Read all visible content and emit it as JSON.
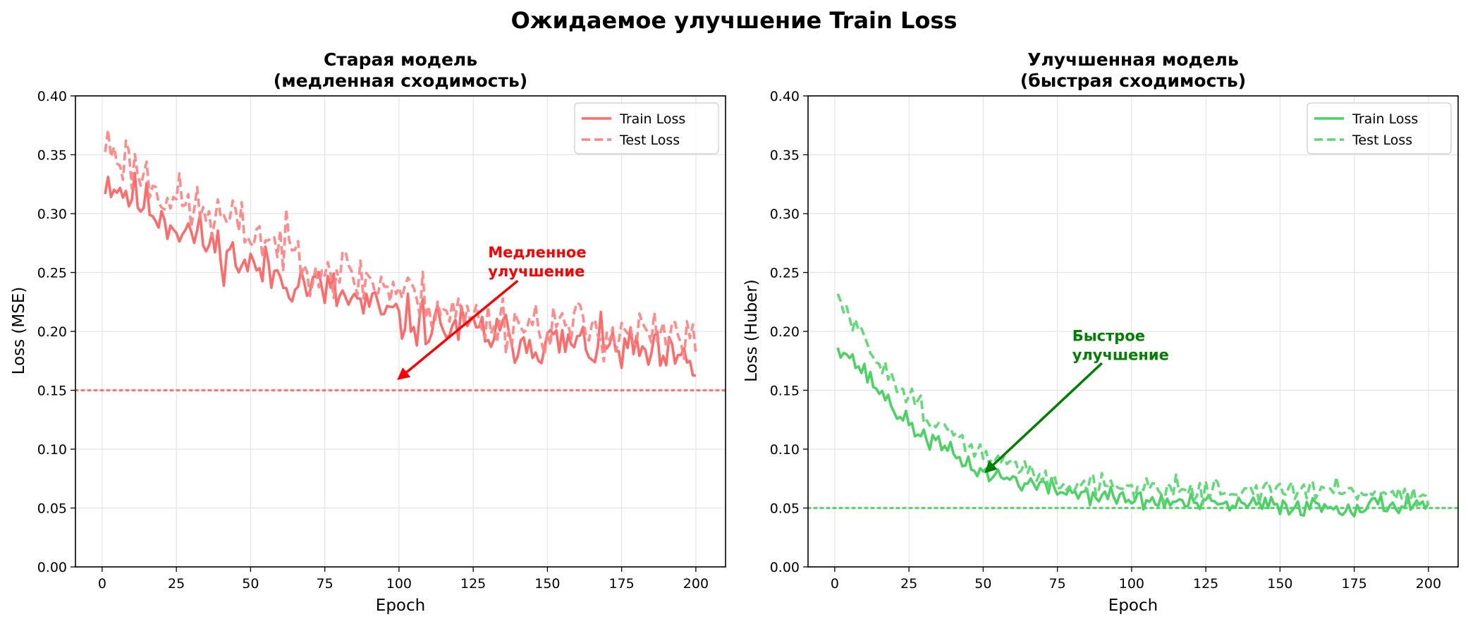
{
  "figure": {
    "title": "Ожидаемое улучшение Train Loss"
  },
  "colors": {
    "old": "#ff6b6b",
    "old_test": "#ff8585",
    "new": "#4cd164",
    "new_test": "#5ad872",
    "old_annotation": "#ff0000",
    "new_annotation": "#008000"
  },
  "chart_data": [
    {
      "type": "line",
      "title_line1": "Старая модель",
      "title_line2": "(медленная сходимость)",
      "xlabel": "Epoch",
      "ylabel": "Loss (MSE)",
      "xlim": [
        -9,
        210
      ],
      "ylim": [
        0.0,
        0.4
      ],
      "xticks": [
        0,
        25,
        50,
        75,
        100,
        125,
        150,
        175,
        200
      ],
      "yticks": [
        "0.00",
        "0.05",
        "0.10",
        "0.15",
        "0.20",
        "0.25",
        "0.30",
        "0.35",
        "0.40"
      ],
      "grid": true,
      "legend_position": "top-right",
      "x": [
        1,
        200
      ],
      "series": [
        {
          "name": "Train Loss",
          "style": "solid",
          "trend": [
            [
              1,
              0.33
            ],
            [
              25,
              0.29
            ],
            [
              50,
              0.255
            ],
            [
              75,
              0.235
            ],
            [
              100,
              0.21
            ],
            [
              125,
              0.2
            ],
            [
              150,
              0.19
            ],
            [
              175,
              0.185
            ],
            [
              200,
              0.17
            ]
          ],
          "noise": 0.015,
          "seed": 11
        },
        {
          "name": "Test Loss",
          "style": "dashed",
          "trend": [
            [
              1,
              0.36
            ],
            [
              25,
              0.31
            ],
            [
              50,
              0.285
            ],
            [
              75,
              0.255
            ],
            [
              100,
              0.235
            ],
            [
              125,
              0.21
            ],
            [
              150,
              0.205
            ],
            [
              175,
              0.2
            ],
            [
              200,
              0.19
            ]
          ],
          "noise": 0.017,
          "seed": 23
        }
      ],
      "reference_line": 0.15,
      "annotation": {
        "line1": "Медленное",
        "line2": "улучшение",
        "text_x": 130,
        "text_y": 0.263,
        "arrow_from": [
          140,
          0.243
        ],
        "arrow_to": [
          100,
          0.16
        ]
      }
    },
    {
      "type": "line",
      "title_line1": "Улучшенная модель",
      "title_line2": "(быстрая сходимость)",
      "xlabel": "Epoch",
      "ylabel": "Loss (Huber)",
      "xlim": [
        -9,
        210
      ],
      "ylim": [
        0.0,
        0.4
      ],
      "xticks": [
        0,
        25,
        50,
        75,
        100,
        125,
        150,
        175,
        200
      ],
      "yticks": [
        "0.00",
        "0.05",
        "0.10",
        "0.15",
        "0.20",
        "0.25",
        "0.30",
        "0.35",
        "0.40"
      ],
      "grid": true,
      "legend_position": "top-right",
      "x": [
        1,
        200
      ],
      "series": [
        {
          "name": "Train Loss",
          "style": "solid",
          "trend": [
            [
              1,
              0.19
            ],
            [
              10,
              0.165
            ],
            [
              25,
              0.12
            ],
            [
              40,
              0.095
            ],
            [
              50,
              0.08
            ],
            [
              75,
              0.065
            ],
            [
              100,
              0.057
            ],
            [
              125,
              0.053
            ],
            [
              150,
              0.052
            ],
            [
              175,
              0.051
            ],
            [
              200,
              0.055
            ]
          ],
          "noise": 0.006,
          "seed": 37
        },
        {
          "name": "Test Loss",
          "style": "dashed",
          "trend": [
            [
              1,
              0.228
            ],
            [
              10,
              0.19
            ],
            [
              25,
              0.145
            ],
            [
              40,
              0.11
            ],
            [
              50,
              0.095
            ],
            [
              75,
              0.072
            ],
            [
              100,
              0.068
            ],
            [
              125,
              0.065
            ],
            [
              150,
              0.065
            ],
            [
              175,
              0.065
            ],
            [
              200,
              0.06
            ]
          ],
          "noise": 0.007,
          "seed": 51
        }
      ],
      "reference_line": 0.05,
      "annotation": {
        "line1": "Быстрое",
        "line2": "улучшение",
        "text_x": 80,
        "text_y": 0.192,
        "arrow_from": [
          90,
          0.173
        ],
        "arrow_to": [
          51,
          0.081
        ]
      }
    }
  ]
}
